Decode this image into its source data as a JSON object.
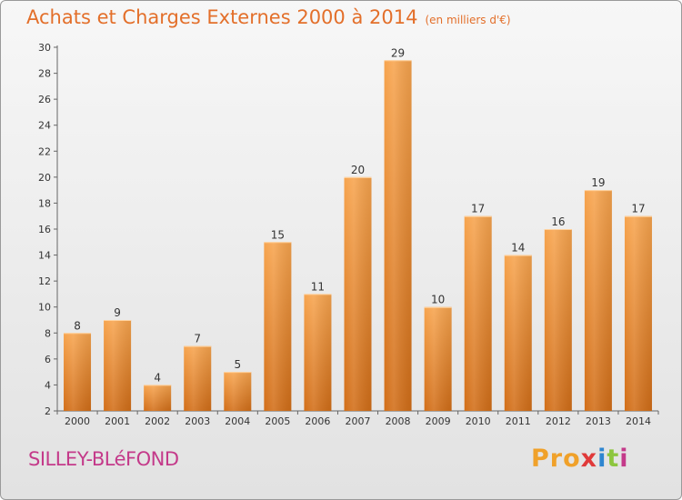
{
  "header": {
    "title": "Achats et Charges Externes 2000 à 2014",
    "unit": "(en milliers d'€)"
  },
  "footer": {
    "commune": "SILLEY-BLéFOND",
    "brand": [
      "Pro",
      "x",
      "i",
      "t",
      "i"
    ]
  },
  "colors": {
    "bar_top": "#f7a44e",
    "bar_bottom": "#d26e18",
    "title": "#e36f2a",
    "commune": "#c43a8a"
  },
  "chart_data": {
    "type": "bar",
    "title": "Achats et Charges Externes 2000 à 2014",
    "subtitle": "(en milliers d'€)",
    "xlabel": "",
    "ylabel": "",
    "categories": [
      "2000",
      "2001",
      "2002",
      "2003",
      "2004",
      "2005",
      "2006",
      "2007",
      "2008",
      "2009",
      "2010",
      "2011",
      "2012",
      "2013",
      "2014"
    ],
    "values": [
      8,
      9,
      4,
      7,
      5,
      15,
      11,
      20,
      29,
      10,
      17,
      14,
      16,
      19,
      17
    ],
    "ylim": [
      2,
      30
    ],
    "yticks": [
      2,
      4,
      6,
      8,
      10,
      12,
      14,
      16,
      18,
      20,
      22,
      24,
      26,
      28,
      30
    ],
    "grid": false,
    "data_labels": true
  }
}
